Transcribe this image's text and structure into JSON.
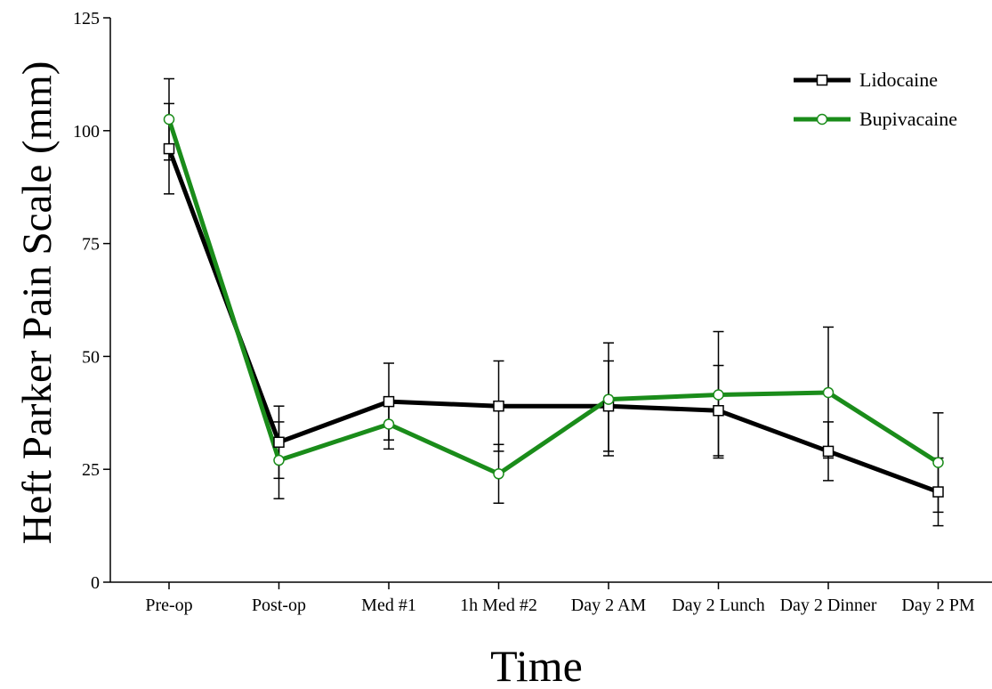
{
  "chart_data": {
    "type": "line",
    "title": "",
    "xlabel": "Time",
    "ylabel": "Heft Parker Pain Scale (mm)",
    "ylim": [
      0,
      125
    ],
    "yticks": [
      0,
      25,
      50,
      75,
      100,
      125
    ],
    "categories": [
      "Pre-op",
      "Post-op",
      "Med #1",
      "1h Med #2",
      "Day 2 AM",
      "Day 2 Lunch",
      "Day 2 Dinner",
      "Day 2 PM"
    ],
    "grid": false,
    "legend_position": "top-right",
    "series": [
      {
        "name": "Lidocaine",
        "color": "#000000",
        "marker": "square",
        "values": [
          96,
          31,
          40,
          39,
          39,
          38,
          29,
          20
        ],
        "error": [
          10,
          8,
          8.5,
          10,
          10,
          10,
          6.5,
          7.5
        ]
      },
      {
        "name": "Bupivacaine",
        "color": "#1a8c1a",
        "marker": "circle",
        "values": [
          102.5,
          27,
          35,
          24,
          40.5,
          41.5,
          42,
          26.5
        ],
        "error": [
          9,
          8.5,
          5.5,
          6.5,
          12.5,
          14,
          14.5,
          11
        ]
      }
    ]
  }
}
